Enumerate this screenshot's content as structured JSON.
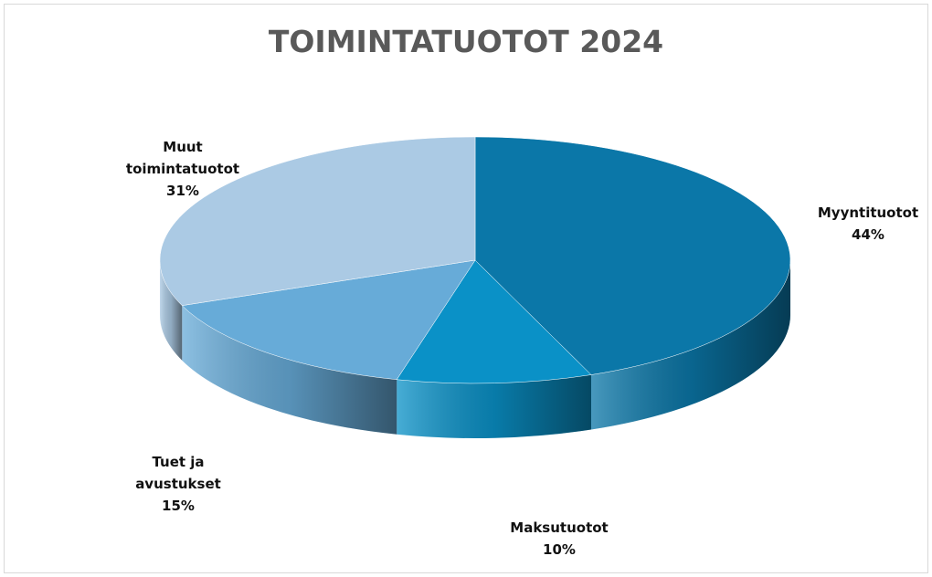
{
  "chart_data": {
    "type": "pie3d",
    "title": "TOIMINTATUOTOT 2024",
    "categories": [
      "Myyntituotot",
      "Maksutuotot",
      "Tuet ja avustukset",
      "Muut toimintatuotot"
    ],
    "values": [
      44,
      10,
      15,
      31
    ],
    "value_labels": [
      "44%",
      "10%",
      "15%",
      "31%"
    ],
    "colors": [
      "#0b77a8",
      "#0a91c7",
      "#67abd8",
      "#abcae4"
    ]
  }
}
